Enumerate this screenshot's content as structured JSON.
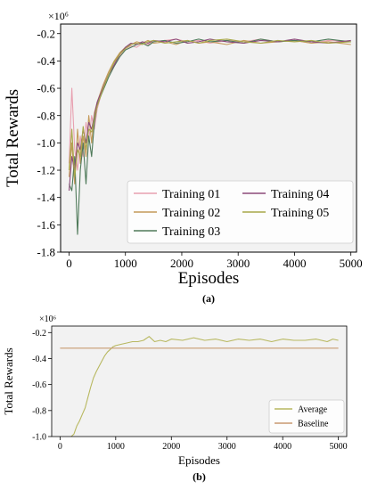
{
  "figure": {
    "panel_a_caption": "(a)",
    "panel_b_caption": "(b)"
  },
  "chart_data": [
    {
      "type": "line",
      "panel": "a",
      "xlabel": "Episodes",
      "ylabel": "Total Rewards",
      "y_multiplier": "×10⁶",
      "xlim": [
        -150,
        5100
      ],
      "ylim": [
        -1.8,
        -0.13
      ],
      "xticks": [
        0,
        1000,
        2000,
        3000,
        4000,
        5000
      ],
      "yticks": [
        -1.8,
        -1.6,
        -1.4,
        -1.2,
        -1.0,
        -0.8,
        -0.6,
        -0.4,
        -0.2
      ],
      "grid": false,
      "background": "#f2f2f2",
      "legend_position": "lower-right",
      "legend_columns": 2,
      "series": [
        {
          "name": "Training 01",
          "color": "#e8a0b0",
          "x": [
            0,
            50,
            100,
            150,
            200,
            250,
            300,
            350,
            400,
            450,
            500,
            600,
            700,
            800,
            900,
            1000,
            1100,
            1200,
            1300,
            1400,
            1500,
            1700,
            1900,
            2100,
            2300,
            2500,
            2800,
            3100,
            3400,
            3700,
            4000,
            4300,
            4600,
            5000
          ],
          "y": [
            -1.15,
            -0.6,
            -1.05,
            -1.2,
            -0.95,
            -1.1,
            -0.85,
            -0.98,
            -0.8,
            -0.9,
            -0.75,
            -0.6,
            -0.5,
            -0.42,
            -0.36,
            -0.31,
            -0.29,
            -0.3,
            -0.27,
            -0.28,
            -0.26,
            -0.25,
            -0.24,
            -0.26,
            -0.25,
            -0.27,
            -0.25,
            -0.26,
            -0.24,
            -0.26,
            -0.25,
            -0.27,
            -0.25,
            -0.26
          ]
        },
        {
          "name": "Training 02",
          "color": "#c49a5a",
          "x": [
            0,
            50,
            100,
            150,
            200,
            250,
            300,
            350,
            400,
            450,
            500,
            600,
            700,
            800,
            900,
            1000,
            1100,
            1200,
            1300,
            1400,
            1500,
            1700,
            1900,
            2100,
            2300,
            2500,
            2800,
            3100,
            3400,
            3700,
            4000,
            4300,
            4600,
            5000
          ],
          "y": [
            -1.25,
            -1.0,
            -1.3,
            -0.9,
            -1.15,
            -0.95,
            -1.1,
            -0.8,
            -1.0,
            -0.78,
            -0.7,
            -0.58,
            -0.48,
            -0.4,
            -0.34,
            -0.3,
            -0.28,
            -0.26,
            -0.27,
            -0.25,
            -0.27,
            -0.26,
            -0.28,
            -0.25,
            -0.27,
            -0.26,
            -0.28,
            -0.25,
            -0.27,
            -0.26,
            -0.25,
            -0.27,
            -0.26,
            -0.28
          ]
        },
        {
          "name": "Training 03",
          "color": "#4f7a5a",
          "x": [
            0,
            50,
            100,
            150,
            200,
            250,
            300,
            350,
            400,
            450,
            500,
            600,
            700,
            800,
            900,
            1000,
            1100,
            1200,
            1300,
            1400,
            1500,
            1700,
            1900,
            2100,
            2300,
            2500,
            2800,
            3100,
            3400,
            3700,
            4000,
            4300,
            4600,
            5000
          ],
          "y": [
            -1.3,
            -1.35,
            -1.1,
            -1.67,
            -1.2,
            -1.0,
            -1.3,
            -0.95,
            -1.1,
            -0.85,
            -0.72,
            -0.62,
            -0.52,
            -0.44,
            -0.37,
            -0.32,
            -0.3,
            -0.28,
            -0.27,
            -0.29,
            -0.26,
            -0.25,
            -0.27,
            -0.26,
            -0.24,
            -0.26,
            -0.25,
            -0.27,
            -0.24,
            -0.26,
            -0.25,
            -0.26,
            -0.24,
            -0.26
          ]
        },
        {
          "name": "Training 04",
          "color": "#8b4a7a",
          "x": [
            0,
            50,
            100,
            150,
            200,
            250,
            300,
            350,
            400,
            450,
            500,
            600,
            700,
            800,
            900,
            1000,
            1100,
            1200,
            1300,
            1400,
            1500,
            1700,
            1900,
            2100,
            2300,
            2500,
            2800,
            3100,
            3400,
            3700,
            4000,
            4300,
            4600,
            5000
          ],
          "y": [
            -1.35,
            -1.1,
            -1.2,
            -1.0,
            -1.05,
            -0.9,
            -1.0,
            -0.85,
            -0.9,
            -0.8,
            -0.7,
            -0.6,
            -0.5,
            -0.43,
            -0.35,
            -0.3,
            -0.27,
            -0.28,
            -0.26,
            -0.27,
            -0.25,
            -0.26,
            -0.24,
            -0.27,
            -0.26,
            -0.24,
            -0.26,
            -0.27,
            -0.25,
            -0.26,
            -0.24,
            -0.26,
            -0.27,
            -0.25
          ]
        },
        {
          "name": "Training 05",
          "color": "#a8a84a",
          "x": [
            0,
            50,
            100,
            150,
            200,
            250,
            300,
            350,
            400,
            450,
            500,
            600,
            700,
            800,
            900,
            1000,
            1100,
            1200,
            1300,
            1400,
            1500,
            1700,
            1900,
            2100,
            2300,
            2500,
            2800,
            3100,
            3400,
            3700,
            4000,
            4300,
            4600,
            5000
          ],
          "y": [
            -1.2,
            -0.9,
            -1.25,
            -1.05,
            -1.1,
            -0.88,
            -1.05,
            -0.9,
            -0.92,
            -0.82,
            -0.73,
            -0.61,
            -0.5,
            -0.41,
            -0.35,
            -0.31,
            -0.28,
            -0.27,
            -0.28,
            -0.26,
            -0.25,
            -0.27,
            -0.26,
            -0.25,
            -0.27,
            -0.25,
            -0.24,
            -0.26,
            -0.27,
            -0.25,
            -0.26,
            -0.25,
            -0.27,
            -0.26
          ]
        }
      ]
    },
    {
      "type": "line",
      "panel": "b",
      "xlabel": "Episodes",
      "ylabel": "Total Rewards",
      "y_multiplier": "×10⁶",
      "xlim": [
        -150,
        5150
      ],
      "ylim": [
        -1.0,
        -0.15
      ],
      "xticks": [
        0,
        1000,
        2000,
        3000,
        4000,
        5000
      ],
      "yticks": [
        -1.0,
        -0.8,
        -0.6,
        -0.4,
        -0.2
      ],
      "grid": false,
      "background": "#f2f2f2",
      "legend_position": "lower-right",
      "series": [
        {
          "name": "Average",
          "color": "#b8b860",
          "x": [
            200,
            250,
            300,
            350,
            400,
            450,
            500,
            550,
            600,
            650,
            700,
            750,
            800,
            850,
            900,
            950,
            1000,
            1100,
            1200,
            1300,
            1400,
            1500,
            1600,
            1700,
            1800,
            1900,
            2000,
            2200,
            2400,
            2600,
            2800,
            3000,
            3200,
            3400,
            3600,
            3800,
            4000,
            4200,
            4400,
            4600,
            4800,
            4900,
            5000
          ],
          "y": [
            -1.0,
            -0.98,
            -0.92,
            -0.88,
            -0.83,
            -0.78,
            -0.7,
            -0.62,
            -0.55,
            -0.5,
            -0.46,
            -0.42,
            -0.38,
            -0.35,
            -0.33,
            -0.31,
            -0.3,
            -0.29,
            -0.28,
            -0.27,
            -0.27,
            -0.26,
            -0.23,
            -0.27,
            -0.26,
            -0.27,
            -0.25,
            -0.26,
            -0.24,
            -0.26,
            -0.25,
            -0.27,
            -0.25,
            -0.26,
            -0.25,
            -0.27,
            -0.25,
            -0.26,
            -0.26,
            -0.25,
            -0.27,
            -0.25,
            -0.26
          ]
        },
        {
          "name": "Baseline",
          "color": "#c89a70",
          "x": [
            0,
            5000
          ],
          "y": [
            -0.32,
            -0.32
          ]
        }
      ]
    }
  ]
}
